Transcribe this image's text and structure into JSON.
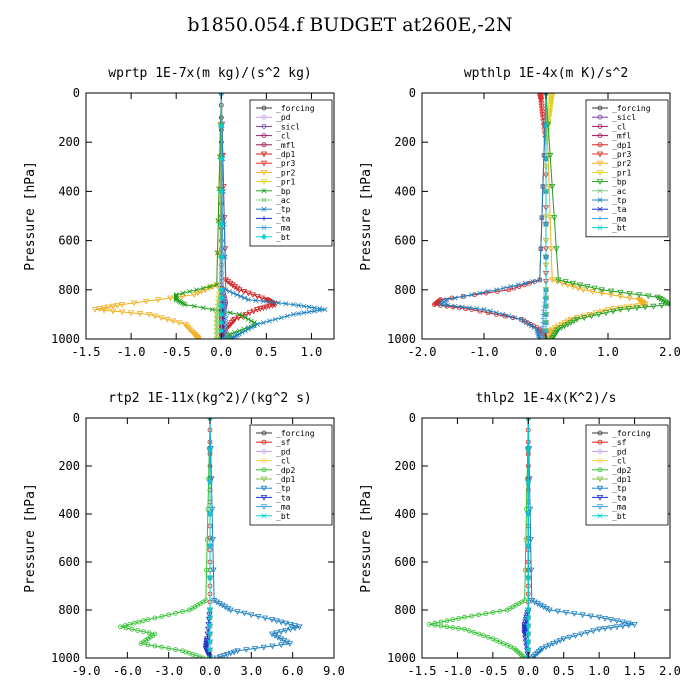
{
  "figure": {
    "title": "b1850.054.f  BUDGET at260E,-2N"
  },
  "colors": {
    "forcing": "#333333",
    "pd": "#c8a0e0",
    "sicl": "#7a3fa0",
    "cl": "#9a2070",
    "mfl": "#a01050",
    "dp1": "#d02020",
    "pr3": "#e03030",
    "pr2": "#f0b020",
    "pr1": "#e0d020",
    "bp": "#20a020",
    "ac": "#80d080",
    "tp": "#2080c0",
    "ta": "#2030c0",
    "ma": "#40a0e0",
    "bt": "#00d0d0",
    "sf": "#e02020",
    "cl_yellow": "#f0d040",
    "dp2": "#30c030",
    "dp1_green": "#80c040"
  },
  "chart_data": [
    {
      "type": "line",
      "title": "wprtp   1E-7x(m kg)/(s^2 kg)",
      "ylabel": "Pressure [hPa]",
      "xlim": [
        -1.5,
        1.25
      ],
      "ylim": [
        1000,
        0
      ],
      "xticks": [
        -1.5,
        -1.0,
        -0.5,
        0.0,
        0.5,
        1.0
      ],
      "xtick_labels": [
        "-1.5",
        "-1.0",
        "-0.5",
        "0.0",
        "0.5",
        "1.0"
      ],
      "yticks": [
        0,
        200,
        400,
        600,
        800,
        1000
      ],
      "ytick_labels": [
        "0",
        "200",
        "400",
        "600",
        "800",
        "1000"
      ],
      "legend_position": "top-right",
      "legend": [
        "_forcing",
        "_pd",
        "_sicl",
        "_cl",
        "_mfl",
        "_dp1",
        "_pr3",
        "_pr2",
        "_pr1",
        "_bp",
        "_ac",
        "_tp",
        "_ta",
        "_ma",
        "_bt"
      ],
      "series": [
        {
          "key": "forcing",
          "p": [
            0,
            300,
            600,
            800,
            900,
            1000
          ],
          "x": [
            0,
            0,
            0,
            0,
            0,
            0
          ]
        },
        {
          "key": "pd",
          "p": [
            0,
            800,
            900,
            1000
          ],
          "x": [
            0,
            0,
            0.02,
            0.02
          ]
        },
        {
          "key": "sicl",
          "p": [
            0,
            800,
            1000
          ],
          "x": [
            0,
            0,
            0
          ]
        },
        {
          "key": "cl",
          "p": [
            0,
            800,
            900,
            1000
          ],
          "x": [
            0,
            0,
            0.02,
            0.02
          ]
        },
        {
          "key": "mfl",
          "p": [
            0,
            780,
            850,
            900,
            1000
          ],
          "x": [
            0,
            0,
            0.05,
            0.02,
            0
          ]
        },
        {
          "key": "dp1",
          "p": [
            0,
            760,
            800,
            840,
            860,
            880,
            920,
            960,
            1000
          ],
          "x": [
            0,
            0.05,
            0.2,
            0.5,
            0.6,
            0.4,
            0.15,
            0.05,
            0.02
          ]
        },
        {
          "key": "pr3",
          "p": [
            0,
            800,
            900,
            1000
          ],
          "x": [
            0,
            0,
            0.01,
            0
          ]
        },
        {
          "key": "pr2",
          "p": [
            0,
            780,
            820,
            860,
            880,
            900,
            940,
            980,
            1000
          ],
          "x": [
            0,
            -0.05,
            -0.3,
            -1.1,
            -1.4,
            -0.8,
            -0.4,
            -0.3,
            -0.25
          ]
        },
        {
          "key": "pr1",
          "p": [
            0,
            800,
            900,
            1000
          ],
          "x": [
            0,
            -0.02,
            -0.05,
            -0.05
          ]
        },
        {
          "key": "bp",
          "p": [
            0,
            780,
            820,
            840,
            860,
            900,
            940,
            980,
            1000
          ],
          "x": [
            0,
            -0.05,
            -0.5,
            -0.5,
            -0.4,
            0.2,
            0.4,
            0.1,
            0.05
          ]
        },
        {
          "key": "ac",
          "p": [
            0,
            800,
            900,
            1000
          ],
          "x": [
            0,
            0,
            -0.05,
            -0.05
          ]
        },
        {
          "key": "tp",
          "p": [
            0,
            800,
            840,
            860,
            880,
            900,
            940,
            980,
            1000
          ],
          "x": [
            0,
            0.05,
            0.3,
            0.8,
            1.15,
            0.8,
            0.4,
            0.2,
            0.1
          ]
        },
        {
          "key": "ta",
          "p": [
            0,
            800,
            900,
            1000
          ],
          "x": [
            0,
            0,
            0.02,
            0.02
          ]
        },
        {
          "key": "ma",
          "p": [
            0,
            800,
            900,
            1000
          ],
          "x": [
            0,
            0.02,
            0.05,
            0.05
          ]
        },
        {
          "key": "bt",
          "p": [
            0,
            800,
            1000
          ],
          "x": [
            0,
            0,
            0
          ]
        }
      ]
    },
    {
      "type": "line",
      "title": "wpthlp   1E-4x(m K)/s^2",
      "ylabel": "Pressure [hPa]",
      "xlim": [
        -2.0,
        2.0
      ],
      "ylim": [
        1000,
        0
      ],
      "xticks": [
        -2.0,
        -1.0,
        0.0,
        1.0,
        2.0
      ],
      "xtick_labels": [
        "-2.0",
        "-1.0",
        "0.0",
        "1.0",
        "2.0"
      ],
      "yticks": [
        0,
        200,
        400,
        600,
        800,
        1000
      ],
      "ytick_labels": [
        "0",
        "200",
        "400",
        "600",
        "800",
        "1000"
      ],
      "legend_position": "top-right",
      "legend": [
        "_forcing",
        "_sicl",
        "_cl",
        "_mfl",
        "_dp1",
        "_pr3",
        "_pr2",
        "_pr1",
        "_bp",
        "_ac",
        "_tp",
        "_ta",
        "_ma",
        "_bt"
      ],
      "series": [
        {
          "key": "forcing",
          "p": [
            0,
            800,
            1000
          ],
          "x": [
            0,
            0,
            0
          ]
        },
        {
          "key": "sicl",
          "p": [
            0,
            800,
            1000
          ],
          "x": [
            0,
            0,
            0
          ]
        },
        {
          "key": "cl",
          "p": [
            0,
            800,
            1000
          ],
          "x": [
            0,
            0,
            0
          ]
        },
        {
          "key": "mfl",
          "p": [
            0,
            800,
            1000
          ],
          "x": [
            0,
            0,
            0
          ]
        },
        {
          "key": "dp1",
          "p": [
            0,
            760,
            800,
            840,
            860,
            880,
            920,
            960,
            1000
          ],
          "x": [
            0,
            -0.1,
            -0.6,
            -1.7,
            -1.8,
            -1.2,
            -0.4,
            -0.1,
            0
          ]
        },
        {
          "key": "pr3",
          "p": [
            0,
            30,
            100,
            200,
            600,
            800,
            1000
          ],
          "x": [
            -0.1,
            -0.08,
            -0.05,
            0,
            0,
            0,
            0
          ]
        },
        {
          "key": "pr2",
          "p": [
            0,
            760,
            800,
            840,
            860,
            880,
            920,
            960,
            1000
          ],
          "x": [
            0,
            0.1,
            0.6,
            1.5,
            1.6,
            1.0,
            0.4,
            0.1,
            0.05
          ]
        },
        {
          "key": "pr1",
          "p": [
            0,
            40,
            100,
            200,
            800,
            1000
          ],
          "x": [
            0.1,
            0.08,
            0.05,
            0,
            0,
            0
          ]
        },
        {
          "key": "bp",
          "p": [
            0,
            760,
            800,
            830,
            860,
            880,
            920,
            960,
            1000
          ],
          "x": [
            0,
            0.2,
            0.9,
            1.8,
            2.0,
            1.2,
            0.5,
            0.2,
            0.1
          ]
        },
        {
          "key": "ac",
          "p": [
            0,
            800,
            1000
          ],
          "x": [
            0,
            0,
            0
          ]
        },
        {
          "key": "tp",
          "p": [
            0,
            760,
            800,
            840,
            860,
            880,
            920,
            960,
            1000
          ],
          "x": [
            0,
            -0.1,
            -0.8,
            -1.6,
            -1.7,
            -1.0,
            -0.4,
            -0.15,
            -0.1
          ]
        },
        {
          "key": "ta",
          "p": [
            0,
            800,
            1000
          ],
          "x": [
            0,
            0,
            0
          ]
        },
        {
          "key": "ma",
          "p": [
            0,
            800,
            900,
            1000
          ],
          "x": [
            0,
            0,
            -0.05,
            -0.05
          ]
        },
        {
          "key": "bt",
          "p": [
            0,
            800,
            1000
          ],
          "x": [
            0,
            0,
            0
          ]
        }
      ]
    },
    {
      "type": "line",
      "title": "rtp2   1E-11x(kg^2)/(kg^2 s)",
      "ylabel": "Pressure [hPa]",
      "xlim": [
        -9.0,
        9.0
      ],
      "ylim": [
        1000,
        0
      ],
      "xticks": [
        -9.0,
        -6.0,
        -3.0,
        0.0,
        3.0,
        6.0,
        9.0
      ],
      "xtick_labels": [
        "-9.0",
        "-6.0",
        "-3.0",
        "0.0",
        "3.0",
        "6.0",
        "9.0"
      ],
      "yticks": [
        0,
        200,
        400,
        600,
        800,
        1000
      ],
      "ytick_labels": [
        "0",
        "200",
        "400",
        "600",
        "800",
        "1000"
      ],
      "legend_position": "top-right",
      "legend": [
        "_forcing",
        "_sf",
        "_pd",
        "_cl",
        "_dp2",
        "_dp1",
        "_tp",
        "_ta",
        "_ma",
        "_bt"
      ],
      "series": [
        {
          "key": "forcing",
          "p": [
            0,
            800,
            1000
          ],
          "x": [
            0,
            0,
            0
          ]
        },
        {
          "key": "sf",
          "p": [
            0,
            300,
            600,
            800,
            1000
          ],
          "x": [
            0,
            0,
            0,
            0,
            0
          ]
        },
        {
          "key": "pd",
          "p": [
            0,
            800,
            1000
          ],
          "x": [
            0,
            0,
            0
          ]
        },
        {
          "key": "cl_yellow",
          "p": [
            0,
            800,
            1000
          ],
          "x": [
            0,
            0,
            0
          ]
        },
        {
          "key": "dp2",
          "p": [
            0,
            760,
            800,
            840,
            870,
            900,
            940,
            970,
            1000
          ],
          "x": [
            0,
            -0.3,
            -1.5,
            -4.5,
            -6.5,
            -4.0,
            -5.0,
            -2.0,
            -0.5
          ]
        },
        {
          "key": "dp1_green",
          "p": [
            0,
            800,
            1000
          ],
          "x": [
            0,
            0,
            0
          ]
        },
        {
          "key": "tp",
          "p": [
            0,
            760,
            800,
            840,
            870,
            900,
            940,
            970,
            1000
          ],
          "x": [
            0,
            0.3,
            1.5,
            4.5,
            6.5,
            4.5,
            5.8,
            2.0,
            0.5
          ]
        },
        {
          "key": "ta",
          "p": [
            0,
            800,
            920,
            960,
            1000
          ],
          "x": [
            0,
            0,
            -0.2,
            -0.3,
            0
          ]
        },
        {
          "key": "ma",
          "p": [
            0,
            800,
            1000
          ],
          "x": [
            0,
            0,
            0
          ]
        },
        {
          "key": "bt",
          "p": [
            0,
            800,
            1000
          ],
          "x": [
            0,
            0,
            0
          ]
        }
      ]
    },
    {
      "type": "line",
      "title": "thlp2   1E-4x(K^2)/s",
      "ylabel": "Pressure [hPa]",
      "xlim": [
        -1.5,
        2.0
      ],
      "ylim": [
        1000,
        0
      ],
      "xticks": [
        -1.5,
        -1.0,
        -0.5,
        0.0,
        0.5,
        1.0,
        1.5,
        2.0
      ],
      "xtick_labels": [
        "-1.5",
        "-1.0",
        "-0.5",
        "0.0",
        "0.5",
        "1.0",
        "1.5",
        "2.0"
      ],
      "yticks": [
        0,
        200,
        400,
        600,
        800,
        1000
      ],
      "ytick_labels": [
        "0",
        "200",
        "400",
        "600",
        "800",
        "1000"
      ],
      "legend_position": "top-right",
      "legend": [
        "_forcing",
        "_sf",
        "_pd",
        "_cl",
        "_dp2",
        "_dp1",
        "_tp",
        "_ta",
        "_ma",
        "_bt"
      ],
      "series": [
        {
          "key": "forcing",
          "p": [
            0,
            800,
            1000
          ],
          "x": [
            0,
            0,
            0
          ]
        },
        {
          "key": "sf",
          "p": [
            0,
            300,
            600,
            800,
            1000
          ],
          "x": [
            0,
            0,
            0,
            0,
            0
          ]
        },
        {
          "key": "pd",
          "p": [
            0,
            800,
            1000
          ],
          "x": [
            0,
            0,
            0
          ]
        },
        {
          "key": "cl_yellow",
          "p": [
            0,
            800,
            1000
          ],
          "x": [
            0,
            0,
            0
          ]
        },
        {
          "key": "dp2",
          "p": [
            0,
            760,
            800,
            830,
            860,
            880,
            920,
            960,
            1000
          ],
          "x": [
            0,
            -0.05,
            -0.3,
            -0.9,
            -1.4,
            -0.9,
            -0.5,
            -0.2,
            -0.05
          ]
        },
        {
          "key": "dp1_green",
          "p": [
            0,
            800,
            1000
          ],
          "x": [
            0,
            0,
            0
          ]
        },
        {
          "key": "tp",
          "p": [
            0,
            760,
            800,
            830,
            860,
            880,
            920,
            960,
            1000
          ],
          "x": [
            0,
            0.05,
            0.3,
            1.0,
            1.5,
            1.0,
            0.5,
            0.2,
            0.05
          ]
        },
        {
          "key": "ta",
          "p": [
            0,
            800,
            860,
            900,
            1000
          ],
          "x": [
            0,
            0,
            -0.05,
            -0.05,
            0
          ]
        },
        {
          "key": "ma",
          "p": [
            0,
            800,
            1000
          ],
          "x": [
            0,
            0,
            0
          ]
        },
        {
          "key": "bt",
          "p": [
            0,
            800,
            1000
          ],
          "x": [
            0,
            0,
            0
          ]
        }
      ]
    }
  ]
}
